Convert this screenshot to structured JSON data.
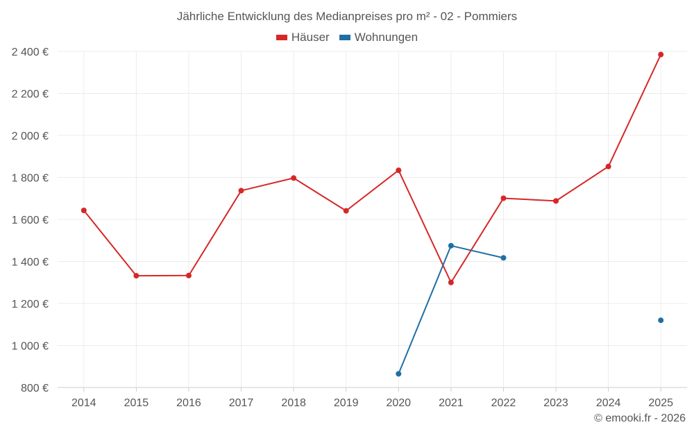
{
  "chart_data": {
    "type": "line",
    "title": "Jährliche Entwicklung des Medianpreises pro m² - 02 - Pommiers",
    "xlabel": "",
    "ylabel": "",
    "categories": [
      "2014",
      "2015",
      "2016",
      "2017",
      "2018",
      "2019",
      "2020",
      "2021",
      "2022",
      "2023",
      "2024",
      "2025"
    ],
    "ylim": [
      800,
      2400
    ],
    "yticks": [
      800,
      1000,
      1200,
      1400,
      1600,
      1800,
      2000,
      2200,
      2400
    ],
    "ytick_labels": [
      "800 €",
      "1 000 €",
      "1 200 €",
      "1 400 €",
      "1 600 €",
      "1 800 €",
      "2 000 €",
      "2 200 €",
      "2 400 €"
    ],
    "grid": true,
    "legend_position": "top-center",
    "series": [
      {
        "name": "Häuser",
        "color": "#d62728",
        "values": [
          1643,
          1332,
          1333,
          1737,
          1797,
          1641,
          1834,
          1300,
          1701,
          1688,
          1852,
          2385
        ]
      },
      {
        "name": "Wohnungen",
        "color": "#1f6fa4",
        "values": [
          null,
          null,
          null,
          null,
          null,
          null,
          865,
          1475,
          1417,
          null,
          null,
          1120
        ]
      }
    ]
  },
  "credit": "© emooki.fr - 2026"
}
